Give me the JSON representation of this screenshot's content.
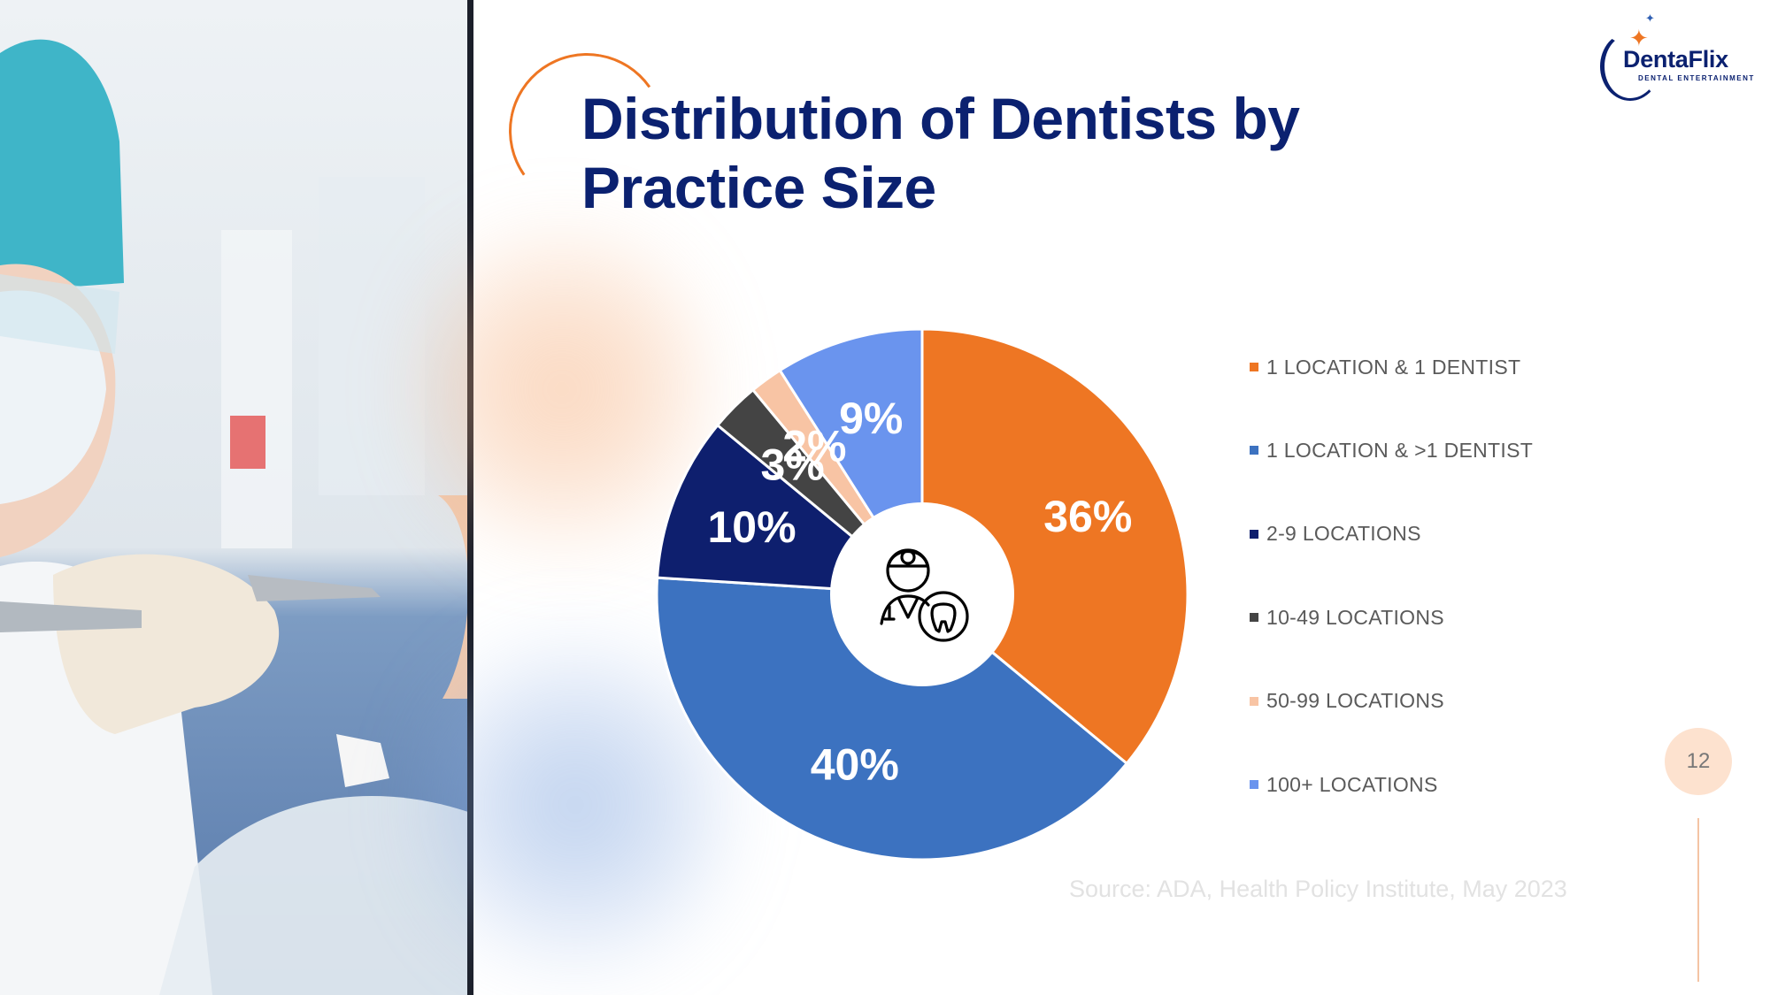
{
  "title": "Distribution of Dentists by Practice Size",
  "logo": {
    "name": "DentaFlix",
    "tagline": "DENTAL ENTERTAINMENT"
  },
  "icons": {
    "center": "dentist-with-tooth-icon"
  },
  "colors": {
    "title": "#0b2170",
    "accent": "#ee7623",
    "label_light": "#ffffff",
    "label_dark": "#333333"
  },
  "chart_data": {
    "type": "pie",
    "donut": true,
    "categories": [
      "1 LOCATION & 1 DENTIST",
      "1 LOCATION & >1 DENTIST",
      "2-9 LOCATIONS",
      "10-49 LOCATIONS",
      "50-99 LOCATIONS",
      "100+ LOCATIONS"
    ],
    "values": [
      36,
      40,
      10,
      3,
      2,
      9
    ],
    "value_labels": [
      "36%",
      "40%",
      "10%",
      "3%",
      "2%",
      "9%"
    ],
    "colors": [
      "#ee7623",
      "#3c72c0",
      "#0e1f6e",
      "#444444",
      "#f8c4a4",
      "#6a94ee"
    ],
    "start_angle_deg": 0,
    "direction": "clockwise",
    "legend_position": "right"
  },
  "source": "Source: ADA, Health Policy Institute, May 2023",
  "page_number": "12"
}
